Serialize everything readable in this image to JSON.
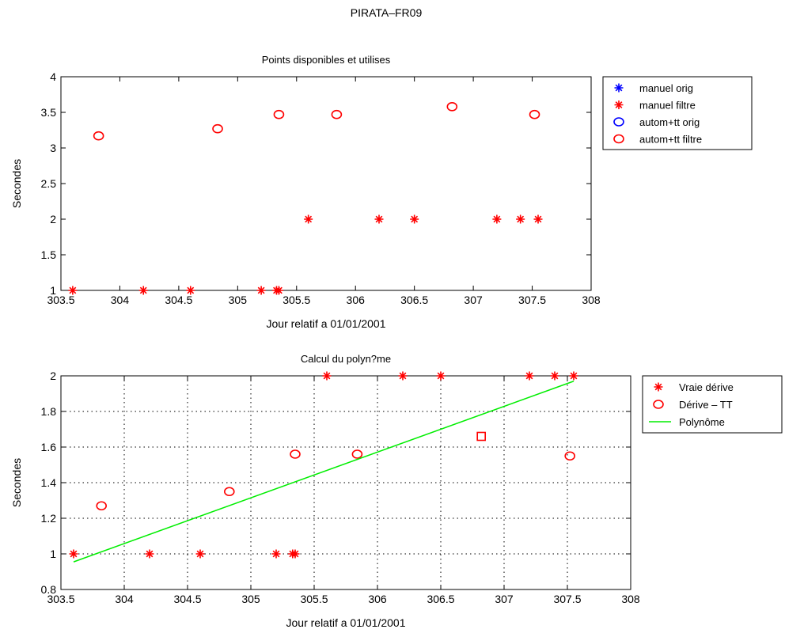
{
  "figure_title": "PIRATA–FR09",
  "chart_data": [
    {
      "type": "scatter",
      "title": "Points disponibles et utilises",
      "xlabel": "Jour relatif a 01/01/2001",
      "ylabel": "Secondes",
      "xlim": [
        303.5,
        308
      ],
      "ylim": [
        1,
        4
      ],
      "xticks": [
        303.5,
        304,
        304.5,
        305,
        305.5,
        306,
        306.5,
        307,
        307.5,
        308
      ],
      "xtick_labels": [
        "303.5",
        "304",
        "304.5",
        "305",
        "305.5",
        "306",
        "306.5",
        "307",
        "307.5",
        "308"
      ],
      "yticks": [
        1,
        1.5,
        2,
        2.5,
        3,
        3.5,
        4
      ],
      "ytick_labels": [
        "1",
        "1.5",
        "2",
        "2.5",
        "3",
        "3.5",
        "4"
      ],
      "grid": false,
      "legend_position": "outside-right",
      "series": [
        {
          "name": "manuel orig",
          "marker": "star",
          "color": "#0000ff",
          "x": [],
          "y": []
        },
        {
          "name": "manuel filtre",
          "marker": "star",
          "color": "#ff0000",
          "x": [
            303.6,
            304.2,
            304.6,
            305.2,
            305.33,
            305.35,
            305.6,
            306.2,
            306.5,
            307.2,
            307.4,
            307.55
          ],
          "y": [
            1,
            1,
            1,
            1,
            1,
            1,
            2,
            2,
            2,
            2,
            2,
            2
          ]
        },
        {
          "name": "autom+tt orig",
          "marker": "circle",
          "color": "#0000ff",
          "x": [],
          "y": []
        },
        {
          "name": "autom+tt filtre",
          "marker": "circle",
          "color": "#ff0000",
          "x": [
            303.82,
            304.83,
            305.35,
            305.84,
            306.82,
            307.52
          ],
          "y": [
            3.17,
            3.27,
            3.47,
            3.47,
            3.58,
            3.47
          ]
        }
      ]
    },
    {
      "type": "scatter",
      "title": "Calcul du polyn?me",
      "xlabel": "Jour relatif a 01/01/2001",
      "ylabel": "Secondes",
      "xlim": [
        303.5,
        308
      ],
      "ylim": [
        0.8,
        2
      ],
      "xticks": [
        303.5,
        304,
        304.5,
        305,
        305.5,
        306,
        306.5,
        307,
        307.5,
        308
      ],
      "xtick_labels": [
        "303.5",
        "304",
        "304.5",
        "305",
        "305.5",
        "306",
        "306.5",
        "307",
        "307.5",
        "308"
      ],
      "yticks": [
        0.8,
        1,
        1.2,
        1.4,
        1.6,
        1.8,
        2
      ],
      "ytick_labels": [
        "0.8",
        "1",
        "1.2",
        "1.4",
        "1.6",
        "1.8",
        "2"
      ],
      "grid": true,
      "legend_position": "outside-right",
      "series": [
        {
          "name": "Vraie dérive",
          "marker": "star",
          "color": "#ff0000",
          "x": [
            303.6,
            304.2,
            304.6,
            305.2,
            305.33,
            305.35,
            305.6,
            306.2,
            306.5,
            307.2,
            307.4,
            307.55
          ],
          "y": [
            1,
            1,
            1,
            1,
            1,
            1,
            2,
            2,
            2,
            2,
            2,
            2
          ]
        },
        {
          "name": "Dérive – TT",
          "marker": "circle",
          "color": "#ff0000",
          "x": [
            303.82,
            304.83,
            305.35,
            305.84,
            307.52
          ],
          "y": [
            1.27,
            1.35,
            1.56,
            1.56,
            1.55
          ]
        },
        {
          "name": "",
          "marker": "square",
          "color": "#ff0000",
          "show_in_legend": false,
          "x": [
            306.82
          ],
          "y": [
            1.66
          ]
        },
        {
          "name": "Polynôme",
          "marker": "line",
          "color": "#00ee00",
          "x": [
            303.6,
            307.55
          ],
          "y": [
            0.955,
            1.97
          ]
        }
      ]
    }
  ]
}
